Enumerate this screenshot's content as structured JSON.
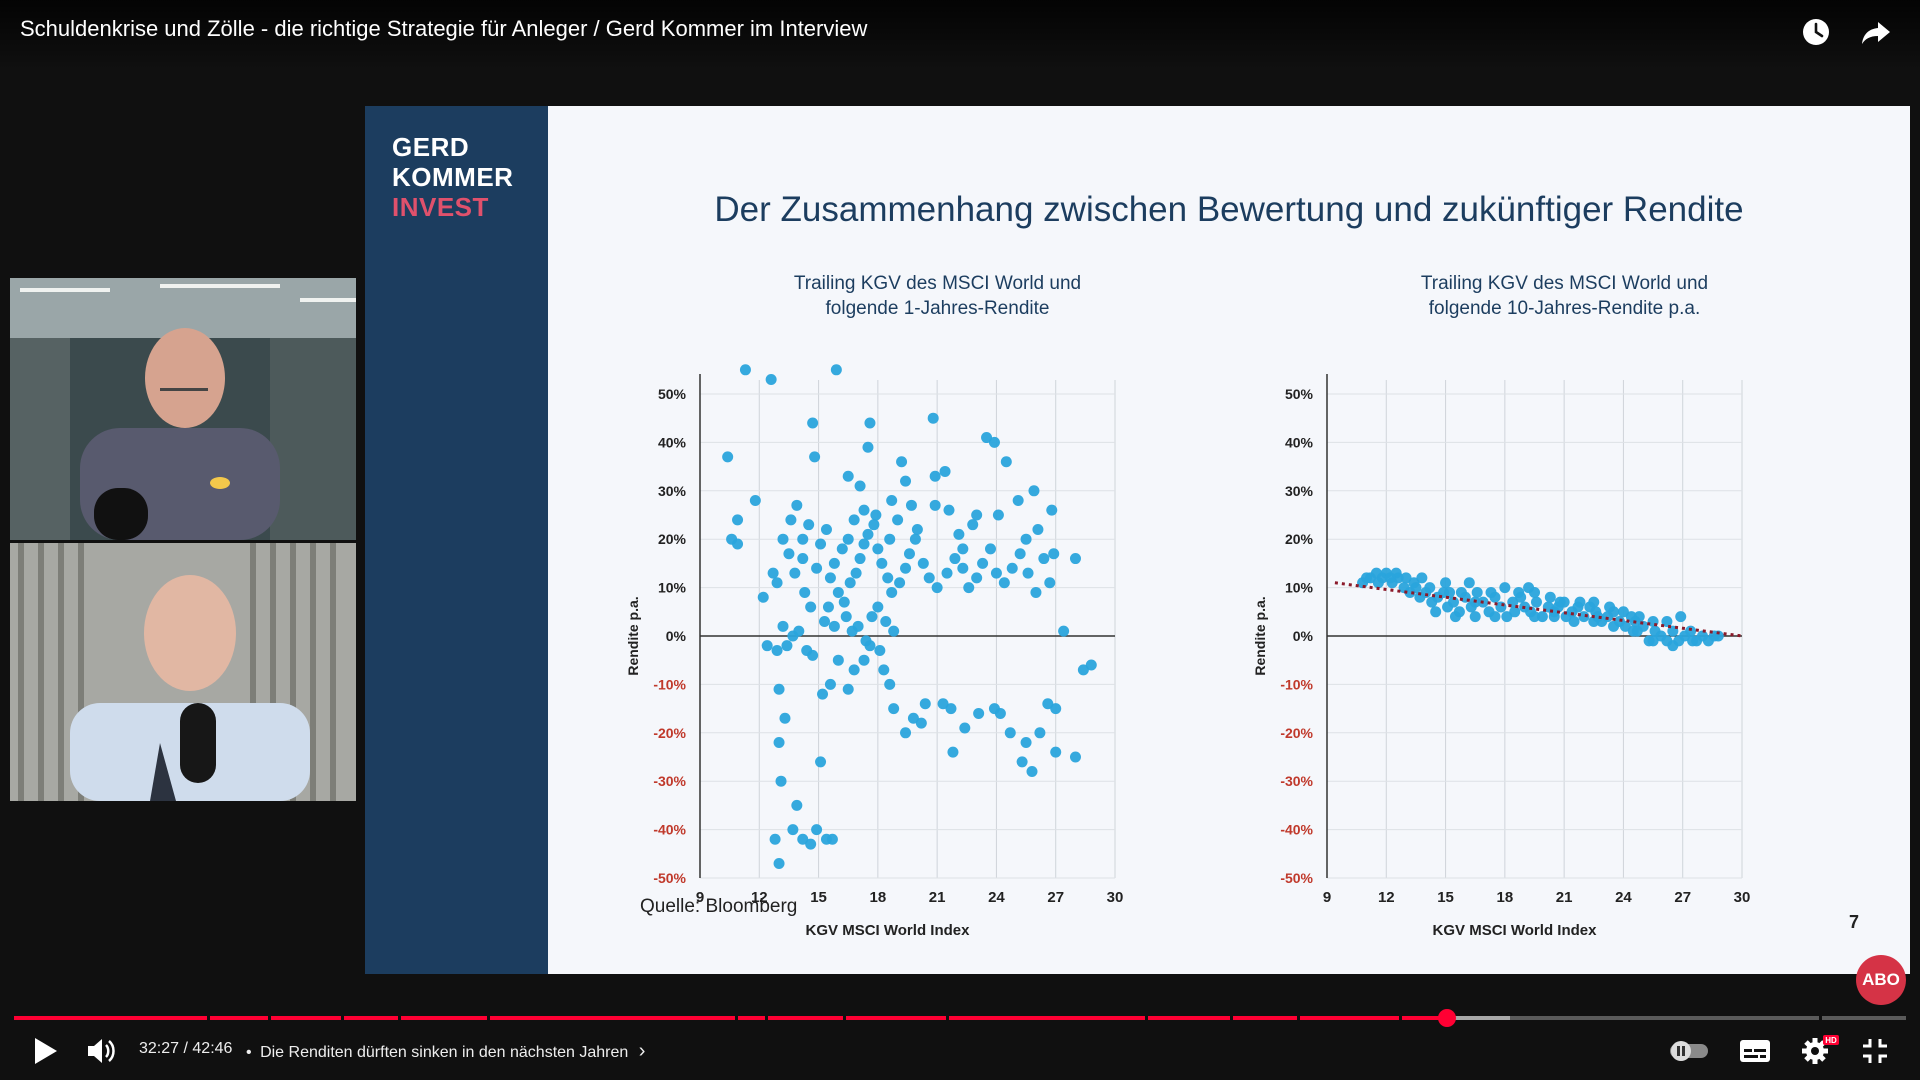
{
  "video": {
    "title": "Schuldenkrise und Zölle - die richtige Strategie für Anleger / Gerd Kommer im Interview"
  },
  "top_icons": [
    "watch-later-icon",
    "share-icon"
  ],
  "slide": {
    "brand": [
      "GERD",
      "KOMMER",
      "INVEST"
    ],
    "title": "Der Zusammenhang zwischen Bewertung und zukünftiger Rendite",
    "source": "Quelle: Bloomberg",
    "page_number": "7"
  },
  "chart_data": [
    {
      "type": "scatter",
      "title": "Trailing KGV des MSCI World und folgende 1-Jahres-Rendite",
      "title_lines": [
        "Trailing KGV des MSCI World und",
        "folgende 1-Jahres-Rendite"
      ],
      "xlabel": "KGV MSCI World Index",
      "ylabel": "Rendite p.a.",
      "xlim": [
        9,
        30
      ],
      "ylim": [
        -50,
        50
      ],
      "xticks": [
        "9",
        "12",
        "15",
        "18",
        "21",
        "24",
        "27",
        "30"
      ],
      "yticks": [
        "50%",
        "40%",
        "30%",
        "20%",
        "10%",
        "0%",
        "-10%",
        "-20%",
        "-30%",
        "-40%",
        "-50%"
      ],
      "points": [
        [
          11.3,
          55
        ],
        [
          12.6,
          53
        ],
        [
          15.9,
          55
        ],
        [
          10.4,
          37
        ],
        [
          10.9,
          24
        ],
        [
          11.8,
          28
        ],
        [
          10.6,
          20
        ],
        [
          10.9,
          19
        ],
        [
          12.2,
          8
        ],
        [
          12.7,
          13
        ],
        [
          12.4,
          -2
        ],
        [
          12.9,
          -3
        ],
        [
          13.0,
          -11
        ],
        [
          13.3,
          -17
        ],
        [
          13.0,
          -22
        ],
        [
          13.1,
          -30
        ],
        [
          12.8,
          -42
        ],
        [
          13.0,
          -47
        ],
        [
          13.7,
          -40
        ],
        [
          13.9,
          -35
        ],
        [
          14.2,
          -42
        ],
        [
          14.6,
          -43
        ],
        [
          14.9,
          -40
        ],
        [
          15.1,
          -26
        ],
        [
          15.4,
          -42
        ],
        [
          15.7,
          -42
        ],
        [
          14.7,
          44
        ],
        [
          14.8,
          37
        ],
        [
          17.6,
          44
        ],
        [
          17.5,
          39
        ],
        [
          16.5,
          33
        ],
        [
          17.1,
          31
        ],
        [
          18.7,
          28
        ],
        [
          19.2,
          36
        ],
        [
          19.4,
          32
        ],
        [
          20.8,
          45
        ],
        [
          20.9,
          33
        ],
        [
          21.4,
          34
        ],
        [
          22.3,
          18
        ],
        [
          23.0,
          25
        ],
        [
          23.5,
          41
        ],
        [
          23.9,
          40
        ],
        [
          24.1,
          25
        ],
        [
          24.5,
          36
        ],
        [
          25.1,
          28
        ],
        [
          25.5,
          20
        ],
        [
          25.9,
          30
        ],
        [
          26.1,
          22
        ],
        [
          26.8,
          26
        ],
        [
          26.9,
          17
        ],
        [
          27.4,
          1
        ],
        [
          28.0,
          16
        ],
        [
          28.4,
          -7
        ],
        [
          28.8,
          -6
        ],
        [
          27.0,
          -15
        ],
        [
          27.0,
          -24
        ],
        [
          28.0,
          -25
        ],
        [
          26.6,
          -14
        ],
        [
          26.2,
          -20
        ],
        [
          25.5,
          -22
        ],
        [
          25.8,
          -28
        ],
        [
          25.3,
          -26
        ],
        [
          24.7,
          -20
        ],
        [
          24.2,
          -16
        ],
        [
          23.9,
          -15
        ],
        [
          23.1,
          -16
        ],
        [
          22.4,
          -19
        ],
        [
          21.8,
          -24
        ],
        [
          21.7,
          -15
        ],
        [
          21.3,
          -14
        ],
        [
          20.4,
          -14
        ],
        [
          20.2,
          -18
        ],
        [
          19.8,
          -17
        ],
        [
          19.4,
          -20
        ],
        [
          18.8,
          -15
        ],
        [
          18.6,
          -10
        ],
        [
          18.3,
          -7
        ],
        [
          18.1,
          -3
        ],
        [
          17.6,
          -2
        ],
        [
          17.3,
          -5
        ],
        [
          16.8,
          -7
        ],
        [
          16.5,
          -11
        ],
        [
          16.0,
          -5
        ],
        [
          15.6,
          -10
        ],
        [
          15.2,
          -12
        ],
        [
          14.7,
          -4
        ],
        [
          14.4,
          -3
        ],
        [
          14.0,
          1
        ],
        [
          13.7,
          0
        ],
        [
          13.4,
          -2
        ],
        [
          13.2,
          2
        ],
        [
          15.8,
          15
        ],
        [
          16.2,
          18
        ],
        [
          16.5,
          20
        ],
        [
          15.4,
          22
        ],
        [
          15.1,
          19
        ],
        [
          14.9,
          14
        ],
        [
          15.6,
          12
        ],
        [
          16.0,
          9
        ],
        [
          16.3,
          7
        ],
        [
          16.6,
          11
        ],
        [
          16.9,
          13
        ],
        [
          17.1,
          16
        ],
        [
          17.3,
          19
        ],
        [
          17.5,
          21
        ],
        [
          17.8,
          23
        ],
        [
          18.0,
          18
        ],
        [
          18.2,
          15
        ],
        [
          18.5,
          12
        ],
        [
          18.7,
          9
        ],
        [
          19.1,
          11
        ],
        [
          19.4,
          14
        ],
        [
          19.6,
          17
        ],
        [
          19.9,
          20
        ],
        [
          20.3,
          15
        ],
        [
          20.6,
          12
        ],
        [
          21.0,
          10
        ],
        [
          21.5,
          13
        ],
        [
          21.9,
          16
        ],
        [
          22.3,
          14
        ],
        [
          22.6,
          10
        ],
        [
          23.0,
          12
        ],
        [
          23.3,
          15
        ],
        [
          23.7,
          18
        ],
        [
          24.0,
          13
        ],
        [
          24.4,
          11
        ],
        [
          24.8,
          14
        ],
        [
          25.2,
          17
        ],
        [
          25.6,
          13
        ],
        [
          26.0,
          9
        ],
        [
          26.4,
          16
        ],
        [
          26.7,
          11
        ],
        [
          13.6,
          24
        ],
        [
          13.9,
          27
        ],
        [
          14.2,
          20
        ],
        [
          14.5,
          23
        ],
        [
          14.2,
          16
        ],
        [
          13.8,
          13
        ],
        [
          13.5,
          17
        ],
        [
          13.2,
          20
        ],
        [
          12.9,
          11
        ],
        [
          16.8,
          24
        ],
        [
          17.3,
          26
        ],
        [
          17.9,
          25
        ],
        [
          18.6,
          20
        ],
        [
          19.0,
          24
        ],
        [
          19.7,
          27
        ],
        [
          20.0,
          22
        ],
        [
          20.9,
          27
        ],
        [
          21.6,
          26
        ],
        [
          22.1,
          21
        ],
        [
          22.8,
          23
        ],
        [
          16.4,
          4
        ],
        [
          16.7,
          1
        ],
        [
          17.0,
          2
        ],
        [
          17.4,
          -1
        ],
        [
          17.7,
          4
        ],
        [
          18.0,
          6
        ],
        [
          18.4,
          3
        ],
        [
          18.8,
          1
        ],
        [
          15.3,
          3
        ],
        [
          15.5,
          6
        ],
        [
          15.8,
          2
        ],
        [
          14.3,
          9
        ],
        [
          14.6,
          6
        ]
      ]
    },
    {
      "type": "scatter",
      "title": "Trailing KGV des MSCI World und folgende 10-Jahres-Rendite p.a.",
      "title_lines": [
        "Trailing KGV des MSCI World und",
        "folgende 10-Jahres-Rendite p.a."
      ],
      "xlabel": "KGV MSCI World Index",
      "ylabel": "Rendite p.a.",
      "xlim": [
        9,
        30
      ],
      "ylim": [
        -50,
        50
      ],
      "xticks": [
        "9",
        "12",
        "15",
        "18",
        "21",
        "24",
        "27",
        "30"
      ],
      "yticks": [
        "50%",
        "40%",
        "30%",
        "20%",
        "10%",
        "0%",
        "-10%",
        "-20%",
        "-30%",
        "-40%",
        "-50%"
      ],
      "trendline": [
        [
          9.4,
          11
        ],
        [
          30,
          0
        ]
      ],
      "points": [
        [
          10.8,
          11
        ],
        [
          11.2,
          12
        ],
        [
          11.5,
          13
        ],
        [
          11.8,
          12
        ],
        [
          12.0,
          13
        ],
        [
          12.3,
          11
        ],
        [
          12.6,
          12
        ],
        [
          12.9,
          10
        ],
        [
          13.2,
          9
        ],
        [
          13.4,
          11
        ],
        [
          13.7,
          8
        ],
        [
          14.0,
          9
        ],
        [
          14.3,
          7
        ],
        [
          14.6,
          8
        ],
        [
          14.9,
          9
        ],
        [
          15.1,
          6
        ],
        [
          15.4,
          7
        ],
        [
          15.7,
          5
        ],
        [
          16.0,
          8
        ],
        [
          16.3,
          6
        ],
        [
          16.6,
          9
        ],
        [
          16.9,
          7
        ],
        [
          17.2,
          5
        ],
        [
          17.5,
          8
        ],
        [
          17.8,
          6
        ],
        [
          18.1,
          4
        ],
        [
          18.4,
          7
        ],
        [
          18.7,
          9
        ],
        [
          19.0,
          6
        ],
        [
          19.3,
          5
        ],
        [
          19.6,
          7
        ],
        [
          19.9,
          4
        ],
        [
          20.2,
          6
        ],
        [
          20.5,
          5
        ],
        [
          20.8,
          7
        ],
        [
          21.1,
          4
        ],
        [
          21.4,
          5
        ],
        [
          21.7,
          6
        ],
        [
          22.0,
          4
        ],
        [
          22.3,
          6
        ],
        [
          22.6,
          5
        ],
        [
          22.9,
          3
        ],
        [
          23.2,
          4
        ],
        [
          23.5,
          5
        ],
        [
          23.8,
          3
        ],
        [
          24.1,
          2
        ],
        [
          24.4,
          4
        ],
        [
          24.7,
          1
        ],
        [
          25.0,
          2
        ],
        [
          25.3,
          -1
        ],
        [
          25.6,
          1
        ],
        [
          25.9,
          0
        ],
        [
          26.2,
          -1
        ],
        [
          26.5,
          1
        ],
        [
          26.8,
          -1
        ],
        [
          27.1,
          0
        ],
        [
          27.4,
          1
        ],
        [
          27.7,
          -1
        ],
        [
          28.0,
          0
        ],
        [
          28.3,
          -1
        ],
        [
          28.6,
          0
        ],
        [
          12.5,
          13
        ],
        [
          13.0,
          12
        ],
        [
          13.5,
          10
        ],
        [
          14.2,
          10
        ],
        [
          15.0,
          11
        ],
        [
          15.8,
          9
        ],
        [
          16.5,
          7
        ],
        [
          17.3,
          9
        ],
        [
          18.0,
          10
        ],
        [
          18.8,
          8
        ],
        [
          19.5,
          9
        ],
        [
          20.3,
          8
        ],
        [
          21.0,
          7
        ],
        [
          21.8,
          7
        ],
        [
          22.5,
          7
        ],
        [
          23.3,
          6
        ],
        [
          24.0,
          5
        ],
        [
          24.8,
          4
        ],
        [
          25.5,
          3
        ],
        [
          26.2,
          3
        ],
        [
          26.9,
          4
        ],
        [
          14.5,
          5
        ],
        [
          15.5,
          4
        ],
        [
          16.5,
          4
        ],
        [
          17.5,
          4
        ],
        [
          18.5,
          5
        ],
        [
          19.5,
          4
        ],
        [
          20.5,
          4
        ],
        [
          21.5,
          3
        ],
        [
          22.5,
          3
        ],
        [
          23.5,
          2
        ],
        [
          24.5,
          1
        ],
        [
          25.5,
          -1
        ],
        [
          26.5,
          -2
        ],
        [
          27.5,
          -1
        ],
        [
          28.8,
          0
        ],
        [
          11.0,
          12
        ],
        [
          11.6,
          11
        ],
        [
          12.2,
          12
        ],
        [
          13.8,
          12
        ],
        [
          15.2,
          9
        ],
        [
          16.2,
          11
        ],
        [
          19.2,
          10
        ],
        [
          20.7,
          6
        ],
        [
          22.7,
          4
        ],
        [
          24.6,
          3
        ]
      ]
    }
  ],
  "controls": {
    "time_current": "32:27",
    "time_total": "42:46",
    "time_separator": " / ",
    "chapter_prefix": "•",
    "chapter_title": "Die Renditen dürften sinken in den nächsten Jahren",
    "chapter_arrow": "›",
    "progress_played": 0.7574,
    "progress_buffered": 0.7905,
    "chapter_marks": [
      0.102,
      0.134,
      0.173,
      0.203,
      0.25,
      0.381,
      0.397,
      0.438,
      0.4925,
      0.598,
      0.6425,
      0.678,
      0.732,
      0.954
    ],
    "abo_badge": "ABO",
    "hd_badge": "HD",
    "accent_color": "#ff0033"
  },
  "colors": {
    "slide_sidebar": "#1c3d5f",
    "brand_accent": "#e0516c",
    "points": "#2aa4dc",
    "negative_tick": "#c0392b",
    "trendline": "#8b1a2a"
  }
}
